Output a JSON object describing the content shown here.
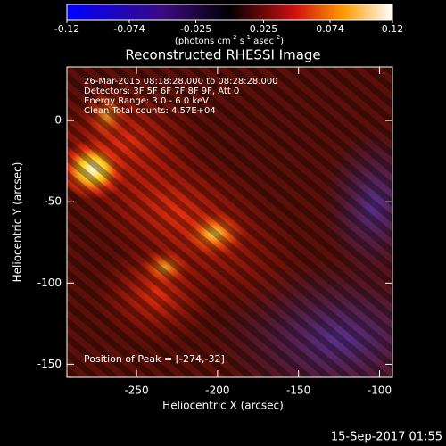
{
  "chart_data": {
    "type": "image",
    "title": "Reconstructed RHESSI Image",
    "colorbar": {
      "lim": [
        -0.12,
        0.12
      ],
      "ticks": [
        -0.12,
        -0.074,
        -0.025,
        0.025,
        0.074,
        0.12
      ],
      "units": [
        "(photons cm",
        "-2",
        " s",
        "-1",
        " asec",
        "-2",
        ")"
      ]
    },
    "xlabel": "Heliocentric X (arcsec)",
    "ylabel": "Heliocentric Y (arcsec)",
    "xlim": [
      -293,
      -92
    ],
    "xticks": [
      -250,
      -200,
      -150,
      -100
    ],
    "ylim": [
      -158,
      33
    ],
    "yticks": [
      0,
      -50,
      -100,
      -150
    ],
    "annotations": [
      "26-Mar-2015 08:18:28.000 to 08:28:28.000",
      "Detectors: 3F 5F 6F 7F 8F 9F, Att 0",
      "Energy Range: 3.0 - 6.0 keV",
      "Clean     Total counts: 4.57E+04"
    ],
    "peak_label": "Position of Peak = [-274,-32]",
    "timestamp": "15-Sep-2017 01:55"
  }
}
